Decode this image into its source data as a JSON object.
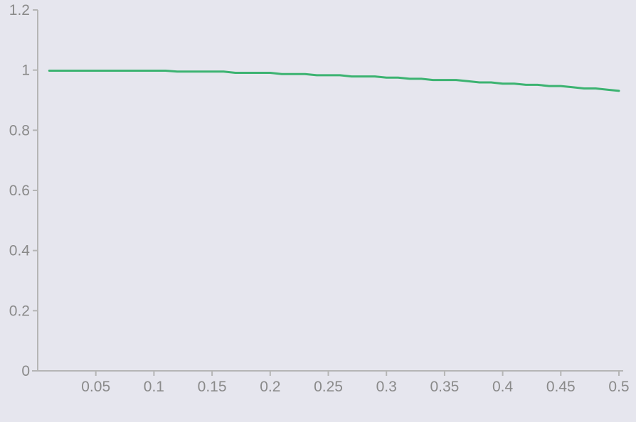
{
  "colors": {
    "background": "#e6e6ee",
    "axis": "#b5b5b5",
    "tick_text": "#8a8a8a",
    "series": "#3cb371"
  },
  "chart_data": {
    "type": "line",
    "title": "",
    "xlabel": "",
    "ylabel": "",
    "xlim": [
      0,
      0.5
    ],
    "ylim": [
      0,
      1.2
    ],
    "grid": false,
    "legend": "none",
    "x_ticks": [
      0.05,
      0.1,
      0.15,
      0.2,
      0.25,
      0.3,
      0.35,
      0.4,
      0.45,
      0.5
    ],
    "x_tick_labels": [
      "0.05",
      "0.1",
      "0.15",
      "0.2",
      "0.25",
      "0.3",
      "0.35",
      "0.4",
      "0.45",
      "0.5"
    ],
    "y_ticks": [
      0,
      0.2,
      0.4,
      0.6,
      0.8,
      1,
      1.2
    ],
    "y_tick_labels": [
      "0",
      "0.2",
      "0.4",
      "0.6",
      "0.8",
      "1",
      "1.2"
    ],
    "series": [
      {
        "color": "#3cb371",
        "x": [
          0.01,
          0.02,
          0.03,
          0.04,
          0.05,
          0.06,
          0.07,
          0.08,
          0.09,
          0.1,
          0.11,
          0.12,
          0.13,
          0.14,
          0.15,
          0.16,
          0.17,
          0.18,
          0.19,
          0.2,
          0.21,
          0.22,
          0.23,
          0.24,
          0.25,
          0.26,
          0.27,
          0.28,
          0.29,
          0.3,
          0.31,
          0.32,
          0.33,
          0.34,
          0.35,
          0.36,
          0.37,
          0.38,
          0.39,
          0.4,
          0.41,
          0.42,
          0.43,
          0.44,
          0.45,
          0.46,
          0.47,
          0.48,
          0.49,
          0.5
        ],
        "values": [
          0.998,
          0.998,
          0.998,
          0.998,
          0.998,
          0.998,
          0.998,
          0.998,
          0.998,
          0.998,
          0.998,
          0.995,
          0.995,
          0.995,
          0.995,
          0.995,
          0.991,
          0.991,
          0.991,
          0.991,
          0.987,
          0.987,
          0.987,
          0.983,
          0.983,
          0.983,
          0.979,
          0.979,
          0.979,
          0.975,
          0.975,
          0.971,
          0.971,
          0.967,
          0.967,
          0.967,
          0.963,
          0.959,
          0.959,
          0.955,
          0.955,
          0.951,
          0.951,
          0.947,
          0.947,
          0.943,
          0.939,
          0.939,
          0.935,
          0.931
        ]
      }
    ]
  }
}
